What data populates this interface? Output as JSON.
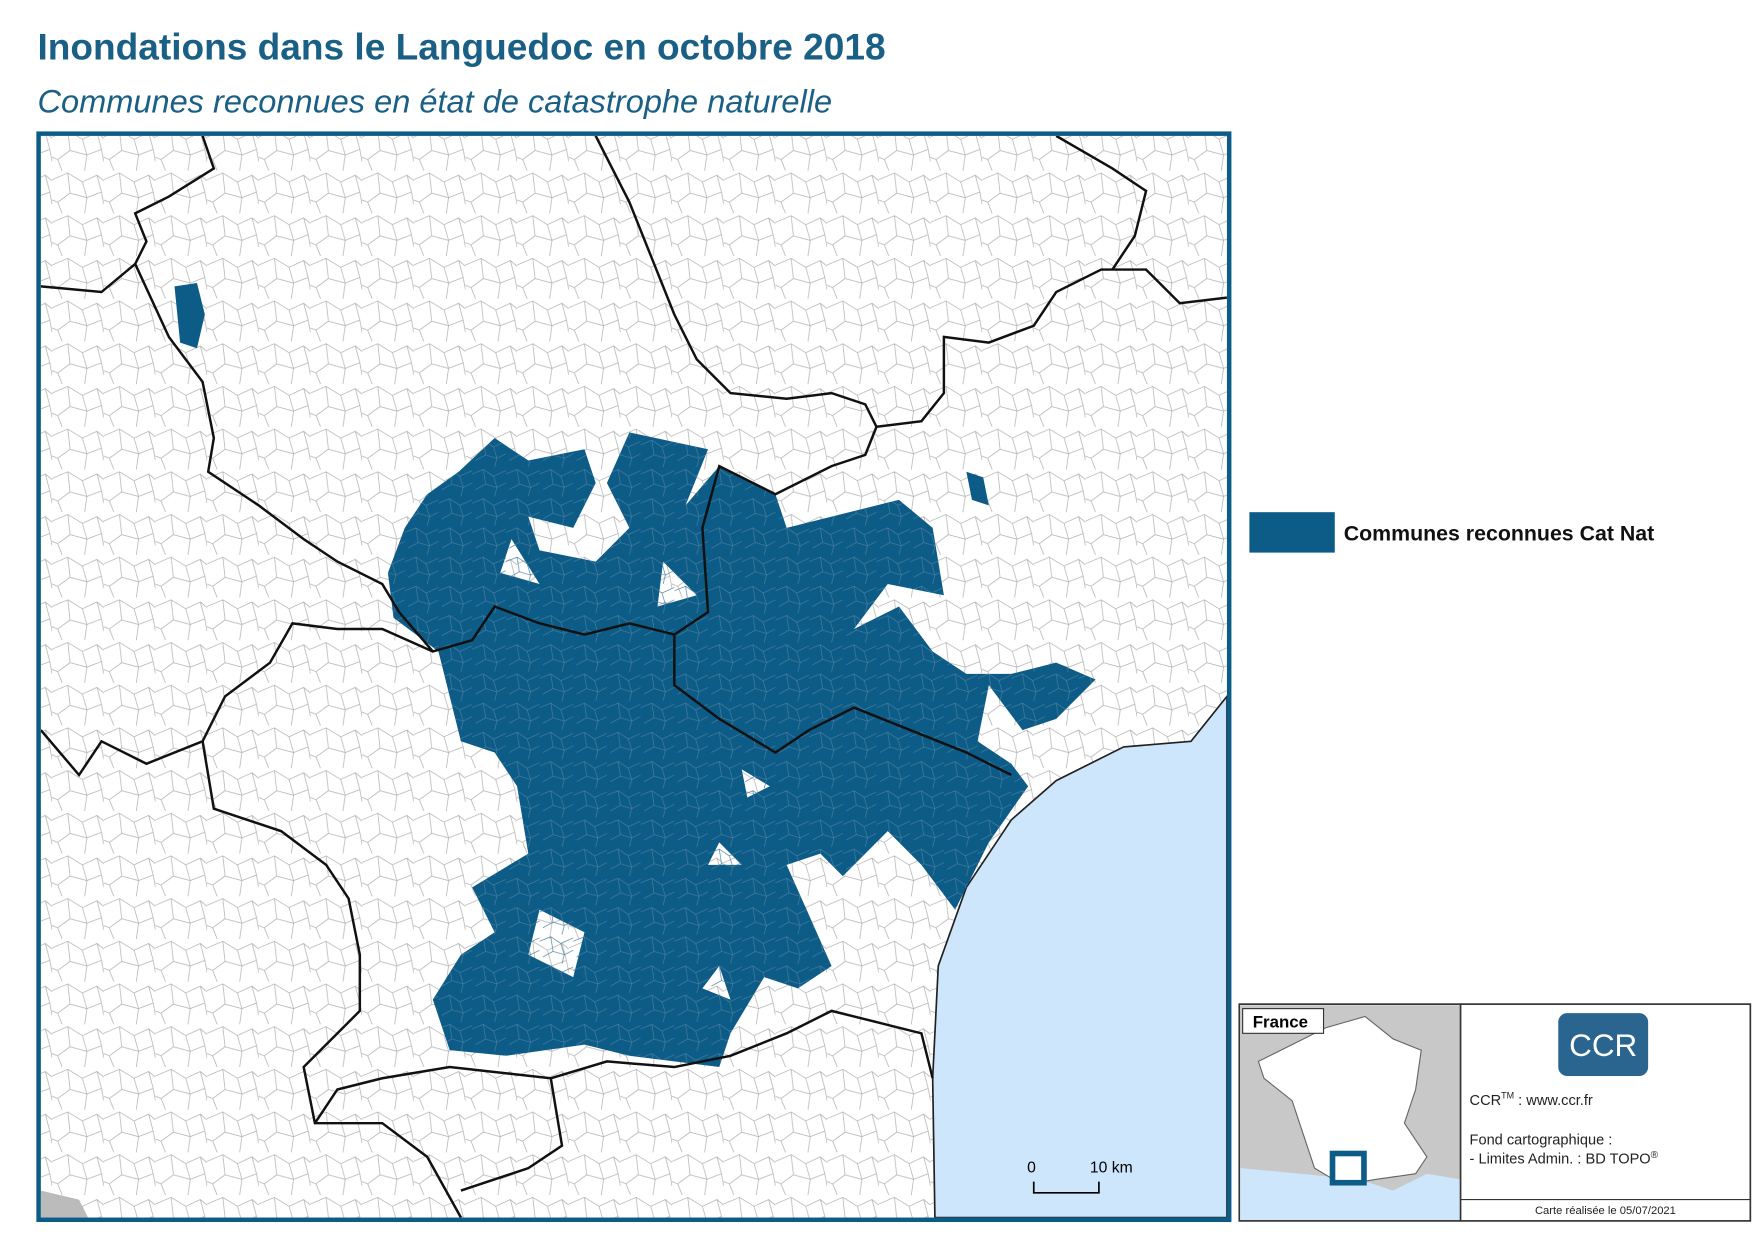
{
  "header": {
    "title": "Inondations dans le Languedoc en octobre 2018",
    "subtitle": "Communes reconnues en état de catastrophe naturelle"
  },
  "legend": {
    "label": "Communes reconnues Cat Nat"
  },
  "scale_bar": {
    "start": "0",
    "end": "10 km"
  },
  "inset": {
    "label": "France",
    "logo": "CCR",
    "credit": "CCR",
    "credit_tm": "TM",
    "credit_url": " : www.ccr.fr",
    "source_title": "Fond cartographique :",
    "source_line": "- Limites Admin. : BD TOPO",
    "source_mark": "®",
    "date": "Carte réalisée le 05/07/2021"
  }
}
